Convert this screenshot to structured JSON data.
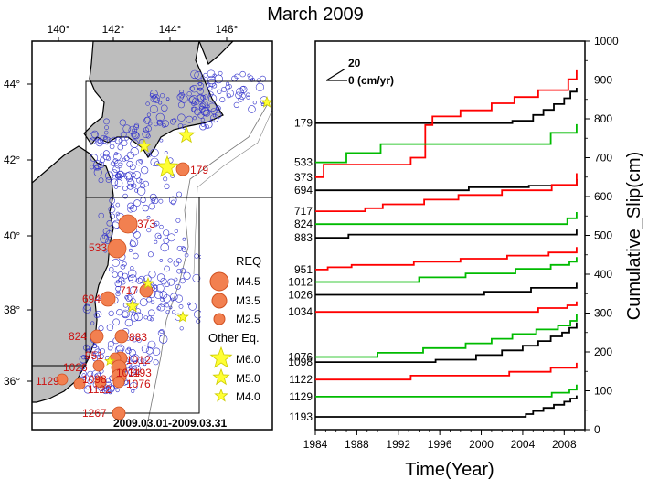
{
  "title": "March 2009",
  "map": {
    "lon_ticks": [
      "140°",
      "142°",
      "144°",
      "146°"
    ],
    "lat_ticks": [
      "44°",
      "42°",
      "40°",
      "38°",
      "36°"
    ],
    "date_range": "2009.03.01-2009.03.31",
    "legend": {
      "req_title": "REQ",
      "req_items": [
        "M4.5",
        "M3.5",
        "M2.5"
      ],
      "other_title": "Other Eq.",
      "other_items": [
        "M6.0",
        "M5.0",
        "M4.0"
      ]
    },
    "sequence_labels": [
      "179",
      "373",
      "533",
      "694",
      "717",
      "824",
      "883",
      "951",
      "1012",
      "1026",
      "1034",
      "1076",
      "1098",
      "1122",
      "1129",
      "1193",
      "1267"
    ]
  },
  "chart_data": {
    "type": "line",
    "xlabel": "Time(Year)",
    "ylabel": "Cumulative_Slip(cm)",
    "xlim": [
      1984,
      2010
    ],
    "ylim": [
      0,
      1000
    ],
    "x_ticks": [
      "1984",
      "1988",
      "1992",
      "1996",
      "2000",
      "2004",
      "2008"
    ],
    "y_ticks": [
      "0",
      "100",
      "200",
      "300",
      "400",
      "500",
      "600",
      "700",
      "800",
      "900",
      "1000"
    ],
    "scale_label": {
      "value": "20",
      "unit": "0 (cm/yr)"
    },
    "colors": {
      "black": "#000000",
      "red": "#ff0000",
      "green": "#00bb00"
    },
    "series": [
      {
        "name": "179",
        "color": "black",
        "steps": [
          [
            1984,
            789
          ],
          [
            2003,
            795
          ],
          [
            2005,
            810
          ],
          [
            2006,
            823
          ],
          [
            2007,
            838
          ],
          [
            2008,
            853
          ],
          [
            2008.6,
            870
          ],
          [
            2009.2,
            880
          ]
        ]
      },
      {
        "name": "373",
        "color": "red",
        "steps": [
          [
            1984,
            650
          ],
          [
            1984.8,
            682
          ],
          [
            1993.2,
            700
          ],
          [
            1994.6,
            784
          ],
          [
            1995.3,
            806
          ],
          [
            1998,
            822
          ],
          [
            2001,
            840
          ],
          [
            2003.2,
            856
          ],
          [
            2005.5,
            874
          ],
          [
            2008.4,
            902
          ],
          [
            2009.2,
            925
          ]
        ]
      },
      {
        "name": "533",
        "color": "green",
        "steps": [
          [
            1984,
            688
          ],
          [
            1987,
            712
          ],
          [
            1990.3,
            735
          ],
          [
            2006.7,
            764
          ],
          [
            2009.2,
            786
          ]
        ]
      },
      {
        "name": "694",
        "color": "black",
        "steps": [
          [
            1984,
            616
          ],
          [
            1998.8,
            624
          ],
          [
            2004.6,
            628
          ],
          [
            2009.2,
            645
          ]
        ]
      },
      {
        "name": "717",
        "color": "red",
        "steps": [
          [
            1984,
            562
          ],
          [
            1988.8,
            570
          ],
          [
            1990.5,
            580
          ],
          [
            1994.5,
            592
          ],
          [
            1997.8,
            604
          ],
          [
            2002,
            616
          ],
          [
            2006.8,
            630
          ],
          [
            2009.2,
            660
          ]
        ]
      },
      {
        "name": "824",
        "color": "green",
        "steps": [
          [
            1984,
            529
          ],
          [
            2008.3,
            544
          ],
          [
            2009.2,
            560
          ]
        ]
      },
      {
        "name": "883",
        "color": "black",
        "steps": [
          [
            1984,
            494
          ],
          [
            1987.2,
            502
          ],
          [
            2009.2,
            515
          ]
        ]
      },
      {
        "name": "951",
        "color": "red",
        "steps": [
          [
            1984,
            412
          ],
          [
            1985.2,
            418
          ],
          [
            1987.5,
            424
          ],
          [
            1993.5,
            432
          ],
          [
            1998,
            440
          ],
          [
            2002.5,
            448
          ],
          [
            2006.5,
            456
          ],
          [
            2009.2,
            470
          ]
        ]
      },
      {
        "name": "1012",
        "color": "green",
        "steps": [
          [
            1984,
            380
          ],
          [
            1994,
            392
          ],
          [
            1998.5,
            402
          ],
          [
            2003.3,
            414
          ],
          [
            2006.7,
            424
          ],
          [
            2008.5,
            432
          ],
          [
            2009.2,
            444
          ]
        ]
      },
      {
        "name": "1026",
        "color": "black",
        "steps": [
          [
            1984,
            347
          ],
          [
            2000.3,
            355
          ],
          [
            2004.8,
            365
          ],
          [
            2009.2,
            378
          ]
        ]
      },
      {
        "name": "1034",
        "color": "red",
        "steps": [
          [
            1984,
            303
          ],
          [
            2005.5,
            313
          ],
          [
            2008.3,
            320
          ],
          [
            2009.2,
            330
          ]
        ]
      },
      {
        "name": "1076",
        "color": "green",
        "steps": [
          [
            1984,
            187
          ],
          [
            1990,
            198
          ],
          [
            1994.4,
            210
          ],
          [
            1998.5,
            222
          ],
          [
            2001,
            234
          ],
          [
            2003,
            246
          ],
          [
            2005.3,
            258
          ],
          [
            2007.4,
            268
          ],
          [
            2008.6,
            280
          ],
          [
            2009.2,
            298
          ]
        ]
      },
      {
        "name": "1098",
        "color": "black",
        "steps": [
          [
            1984,
            174
          ],
          [
            1995.6,
            180
          ],
          [
            1999.5,
            192
          ],
          [
            2002,
            204
          ],
          [
            2004,
            216
          ],
          [
            2005.5,
            228
          ],
          [
            2006.7,
            240
          ],
          [
            2007.8,
            250
          ],
          [
            2008.5,
            262
          ],
          [
            2009.2,
            276
          ]
        ]
      },
      {
        "name": "1122",
        "color": "red",
        "steps": [
          [
            1984,
            129
          ],
          [
            1993.2,
            139
          ],
          [
            2002.7,
            149
          ],
          [
            2006.7,
            159
          ],
          [
            2009.2,
            172
          ]
        ]
      },
      {
        "name": "1129",
        "color": "green",
        "steps": [
          [
            1984,
            85
          ],
          [
            2006.8,
            95
          ],
          [
            2008.5,
            103
          ],
          [
            2009.2,
            116
          ]
        ]
      },
      {
        "name": "1193",
        "color": "black",
        "steps": [
          [
            1984,
            33
          ],
          [
            2004.3,
            40
          ],
          [
            2005,
            48
          ],
          [
            2006,
            56
          ],
          [
            2007,
            64
          ],
          [
            2008,
            72
          ],
          [
            2008.6,
            80
          ],
          [
            2009.2,
            88
          ]
        ]
      }
    ]
  }
}
